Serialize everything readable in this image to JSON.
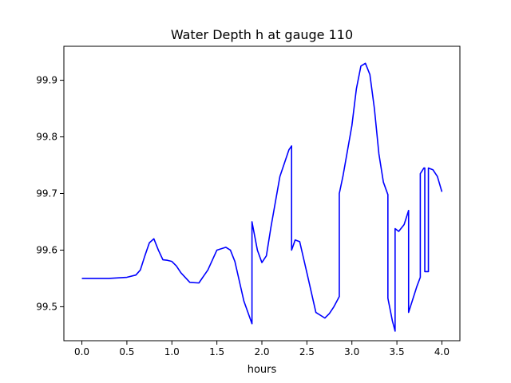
{
  "chart_data": {
    "type": "line",
    "title": "Water Depth h at gauge 110",
    "xlabel": "hours",
    "ylabel": "",
    "xlim": [
      -0.2,
      4.2
    ],
    "ylim": [
      99.44,
      99.96
    ],
    "grid": false,
    "legend": "none",
    "line_color": "#0000ff",
    "x_ticks": [
      0.0,
      0.5,
      1.0,
      1.5,
      2.0,
      2.5,
      3.0,
      3.5,
      4.0
    ],
    "x_tick_labels": [
      "0.0",
      "0.5",
      "1.0",
      "1.5",
      "2.0",
      "2.5",
      "3.0",
      "3.5",
      "4.0"
    ],
    "y_ticks": [
      99.5,
      99.6,
      99.7,
      99.8,
      99.9
    ],
    "y_tick_labels": [
      "99.5",
      "99.6",
      "99.7",
      "99.8",
      "99.9"
    ],
    "series": [
      {
        "name": "",
        "x": [
          0.0,
          0.3,
          0.5,
          0.6,
          0.65,
          0.7,
          0.75,
          0.8,
          0.85,
          0.9,
          0.95,
          1.0,
          1.05,
          1.1,
          1.2,
          1.3,
          1.4,
          1.5,
          1.6,
          1.65,
          1.7,
          1.75,
          1.8,
          1.89,
          1.89,
          1.95,
          2.0,
          2.05,
          2.1,
          2.2,
          2.3,
          2.33,
          2.33,
          2.37,
          2.42,
          2.5,
          2.6,
          2.7,
          2.75,
          2.8,
          2.86,
          2.86,
          2.9,
          3.0,
          3.05,
          3.1,
          3.15,
          3.2,
          3.25,
          3.3,
          3.35,
          3.4,
          3.4,
          3.45,
          3.48,
          3.48,
          3.52,
          3.58,
          3.63,
          3.63,
          3.67,
          3.72,
          3.76,
          3.76,
          3.8,
          3.81,
          3.81,
          3.85,
          3.85,
          3.9,
          3.95,
          4.0
        ],
        "y": [
          99.55,
          99.55,
          99.552,
          99.556,
          99.565,
          99.59,
          99.613,
          99.62,
          99.6,
          99.583,
          99.582,
          99.58,
          99.572,
          99.56,
          99.543,
          99.542,
          99.565,
          99.6,
          99.605,
          99.6,
          99.58,
          99.545,
          99.51,
          99.47,
          99.65,
          99.6,
          99.578,
          99.59,
          99.64,
          99.73,
          99.777,
          99.784,
          99.6,
          99.618,
          99.615,
          99.56,
          99.49,
          99.48,
          99.488,
          99.5,
          99.518,
          99.7,
          99.73,
          99.82,
          99.885,
          99.925,
          99.93,
          99.91,
          99.85,
          99.77,
          99.72,
          99.698,
          99.515,
          99.475,
          99.457,
          99.638,
          99.633,
          99.645,
          99.67,
          99.49,
          99.51,
          99.535,
          99.552,
          99.735,
          99.745,
          99.745,
          99.562,
          99.562,
          99.745,
          99.742,
          99.73,
          99.703
        ]
      }
    ]
  }
}
